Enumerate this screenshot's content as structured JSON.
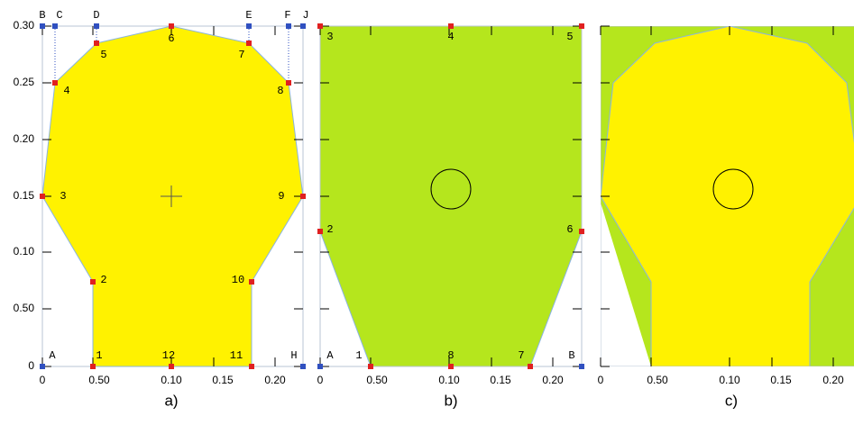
{
  "y_axis_labels": [
    "0.30",
    "0.25",
    "0.20",
    "0.15",
    "0.10",
    "0.50",
    "0"
  ],
  "panels": [
    {
      "caption": "a)",
      "x_axis_labels": [
        "0",
        "0.50",
        "0.10",
        "0.15",
        "0.20"
      ],
      "point_labels": [
        "1",
        "2",
        "3",
        "4",
        "5",
        "6",
        "7",
        "8",
        "9",
        "10",
        "11",
        "12"
      ],
      "corner_labels": [
        "B",
        "C",
        "D",
        "E",
        "F",
        "J",
        "A",
        "H"
      ]
    },
    {
      "caption": "b)",
      "x_axis_labels": [
        "0",
        "0.50",
        "0.10",
        "0.15",
        "0.20"
      ],
      "point_labels": [
        "1",
        "2",
        "3",
        "4",
        "5",
        "6",
        "7",
        "8"
      ],
      "corner_labels": [
        "A",
        "B"
      ]
    },
    {
      "caption": "c)",
      "x_axis_labels": [
        "0",
        "0.50",
        "0.10",
        "0.15",
        "0.20"
      ]
    }
  ]
}
